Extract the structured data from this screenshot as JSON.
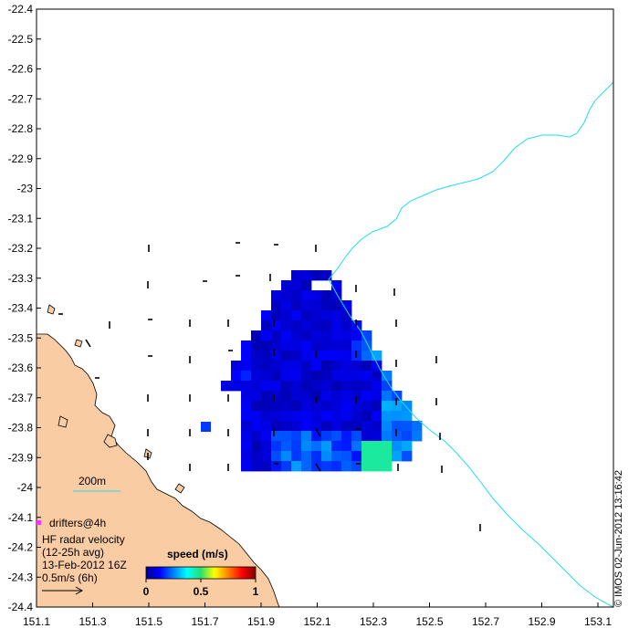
{
  "map": {
    "y_ticks": [
      "-22.4",
      "-22.5",
      "-22.6",
      "-22.7",
      "-22.8",
      "-22.9",
      "-23",
      "-23.1",
      "-23.2",
      "-23.3",
      "-23.4",
      "-23.5",
      "-23.6",
      "-23.7",
      "-23.8",
      "-23.9",
      "-24",
      "-24.1",
      "-24.2",
      "-24.3",
      "-24.4"
    ],
    "x_ticks": [
      "151.1",
      "151.3",
      "151.5",
      "151.7",
      "151.9",
      "152.1",
      "152.3",
      "152.5",
      "152.7",
      "152.9",
      "153.1"
    ],
    "contour_label": "200m",
    "legend": {
      "drifters_label": "drifters@4h",
      "radar_line1": "HF radar velocity",
      "radar_line2": "(12-25h avg)",
      "date": "13-Feb-2012 16Z",
      "scale_label": "0.5m/s (6h)"
    },
    "colorbar": {
      "title": "speed (m/s)",
      "tick_labels": [
        "0",
        "0.5",
        "1"
      ],
      "tick_values": [
        0,
        0.5,
        1
      ]
    },
    "credit": "© IMOS 02-Jun-2012 13:16:42",
    "colors": {
      "land": "#f9cca4",
      "contour": "#22dcec",
      "drifter": "#ff30ff"
    }
  }
}
